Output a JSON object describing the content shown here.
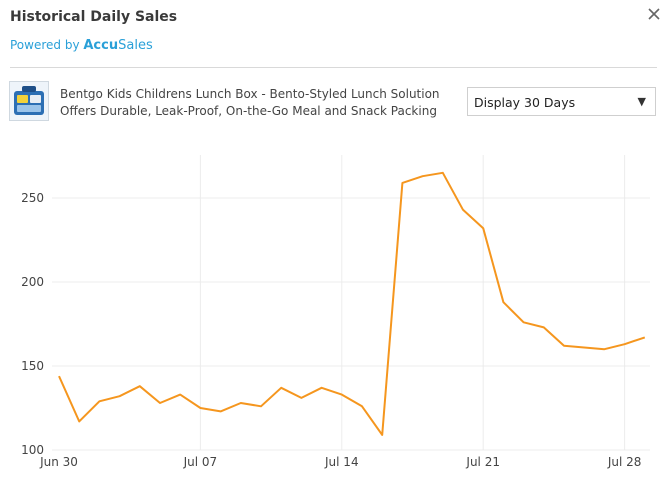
{
  "header": {
    "title": "Historical Daily Sales",
    "close_icon": "close-icon"
  },
  "powered": {
    "prefix": "Powered by ",
    "brand_bold": "Accu",
    "brand_rest": "Sales"
  },
  "product": {
    "name": "Bentgo Kids Childrens Lunch Box - Bento-Styled Lunch Solution Offers Durable, Leak-Proof, On-the-Go Meal and Snack Packing",
    "thumbnail_icon": "lunch-box-image"
  },
  "range_select": {
    "value": "Display 30 Days",
    "caret_icon": "caret-down-icon"
  },
  "colors": {
    "line": "#f5961e",
    "accent": "#2aa0d8",
    "grid": "#ececec"
  },
  "chart_data": {
    "type": "line",
    "x_ticks": [
      "Jun 30",
      "Jul 07",
      "Jul 14",
      "Jul 21",
      "Jul 28"
    ],
    "y_ticks": [
      100,
      150,
      200,
      250
    ],
    "ylim": [
      100,
      270
    ],
    "grid": true,
    "series": [
      {
        "x": [
          "Jun 30",
          "Jul 01",
          "Jul 02",
          "Jul 03",
          "Jul 04",
          "Jul 05",
          "Jul 06",
          "Jul 07",
          "Jul 08",
          "Jul 09",
          "Jul 10",
          "Jul 11",
          "Jul 12",
          "Jul 13",
          "Jul 14",
          "Jul 15",
          "Jul 16",
          "Jul 17",
          "Jul 18",
          "Jul 19",
          "Jul 20",
          "Jul 21",
          "Jul 22",
          "Jul 23",
          "Jul 24",
          "Jul 25",
          "Jul 26",
          "Jul 27",
          "Jul 28",
          "Jul 29"
        ],
        "values": [
          144,
          117,
          129,
          132,
          138,
          128,
          133,
          125,
          123,
          128,
          126,
          137,
          131,
          137,
          133,
          126,
          109,
          259,
          263,
          265,
          243,
          232,
          188,
          176,
          173,
          162,
          161,
          160,
          163,
          167
        ]
      }
    ]
  }
}
